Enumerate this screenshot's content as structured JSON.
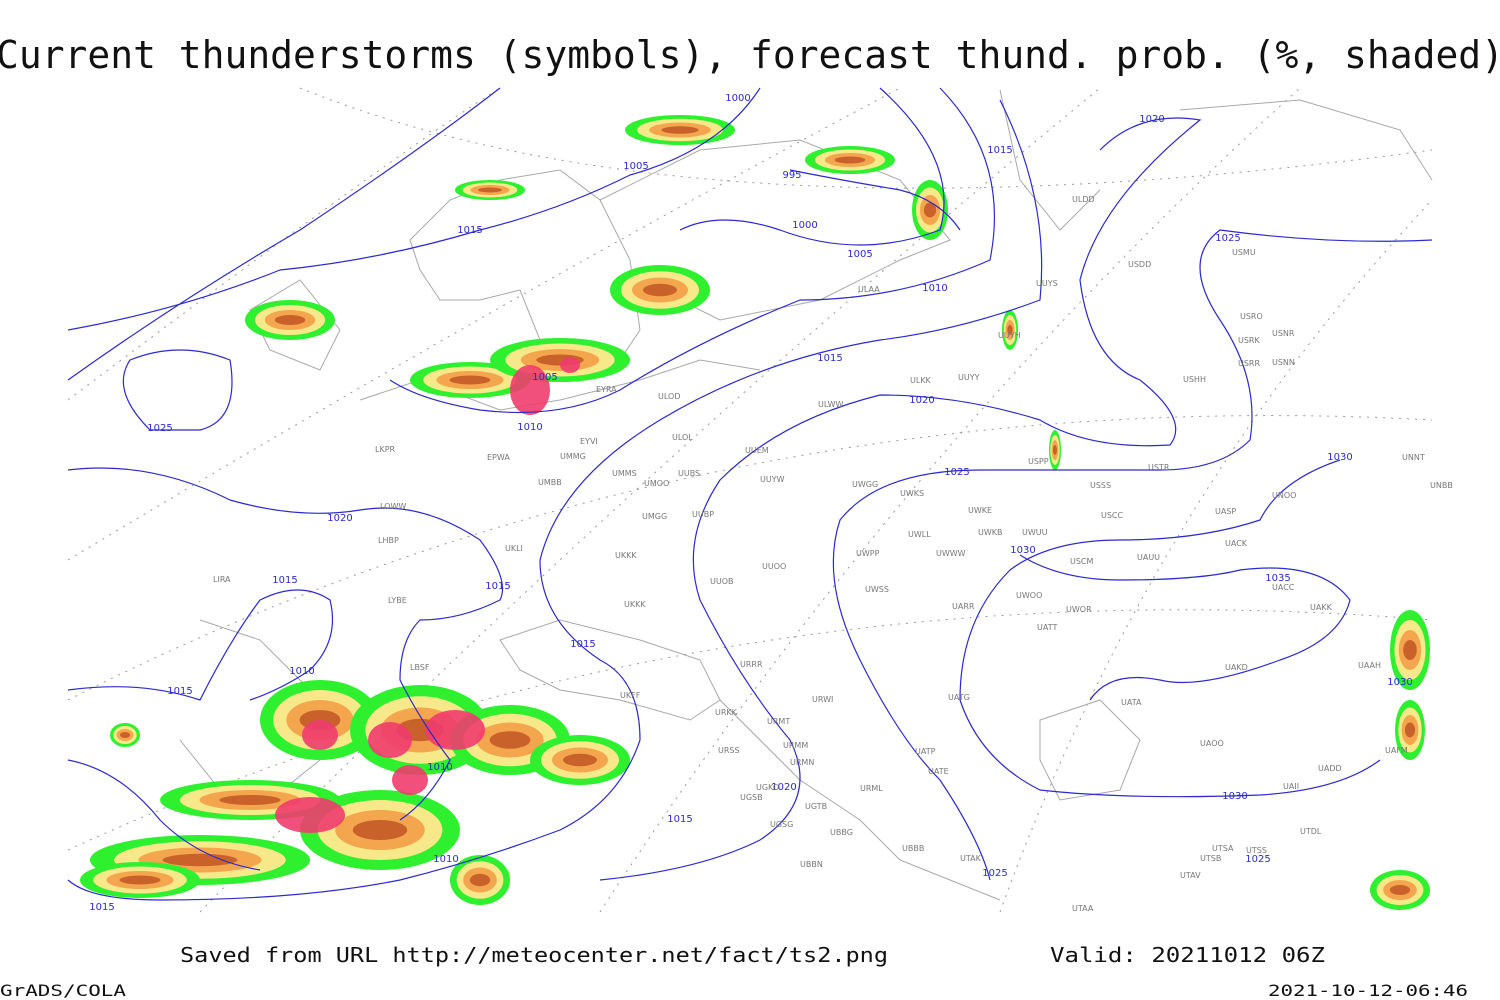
{
  "header": {
    "title": "Current thunderstorms (symbols), forecast thund. prob. (%, shaded)"
  },
  "isobar_labels": [
    "1000",
    "1005",
    "995",
    "1000",
    "1005",
    "1010",
    "1015",
    "1015",
    "1020",
    "1025",
    "1025",
    "1010",
    "1015",
    "1020",
    "1025",
    "1020",
    "1015",
    "1015",
    "1015",
    "1010",
    "1015",
    "1010",
    "1020",
    "1015",
    "1010",
    "1015",
    "1025",
    "1030",
    "1030",
    "1035",
    "1030",
    "1030",
    "1025",
    "1005"
  ],
  "stations": [
    "ULDD",
    "USDD",
    "USMU",
    "UUYS",
    "ULAA",
    "UUYH",
    "USRO",
    "USRK",
    "USNR",
    "USRR",
    "USNN",
    "USHH",
    "ULKK",
    "UUYY",
    "ULWW",
    "ULOD",
    "EYRA",
    "EYVI",
    "ULOL",
    "UUEM",
    "EPWA",
    "UMMG",
    "LKPR",
    "UUYW",
    "UMMS",
    "UMOO",
    "UUBS",
    "UMBB",
    "UWGG",
    "UWKS",
    "USPP",
    "USTR",
    "USSS",
    "UNNT",
    "UNBB",
    "UNOO",
    "LOWW",
    "UMGG",
    "UUBP",
    "UWKE",
    "UWKB",
    "UWUU",
    "USCC",
    "UASP",
    "UACK",
    "UKLI",
    "UKKK",
    "LHBP",
    "UWLL",
    "UWPP",
    "UWWW",
    "USCM",
    "UAUU",
    "UUOO",
    "LIRA",
    "UUOB",
    "LYBE",
    "UWSS",
    "UARR",
    "UWOO",
    "UWOR",
    "UACC",
    "UAKK",
    "UKKK",
    "UATT",
    "LBSF",
    "UAKD",
    "URRR",
    "UKFF",
    "URWI",
    "UATG",
    "UATA",
    "UAAH",
    "URKK",
    "URMT",
    "UAOO",
    "URSS",
    "URMM",
    "UATP",
    "UATE",
    "UAFM",
    "URMN",
    "UADD",
    "UGKO",
    "URML",
    "UGSB",
    "UGTB",
    "UTDL",
    "UGSG",
    "UBBG",
    "UBBB",
    "UTAK",
    "UTSA",
    "UTSS",
    "UTSB",
    "UBBN",
    "UTAV",
    "UTAA",
    "UAII"
  ],
  "footer": {
    "source": "Saved from URL http://meteocenter.net/fact/ts2.png",
    "valid": "Valid: 20211012 06Z",
    "software": "GrADS/COLA",
    "timestamp": "2021-10-12-06:46"
  }
}
